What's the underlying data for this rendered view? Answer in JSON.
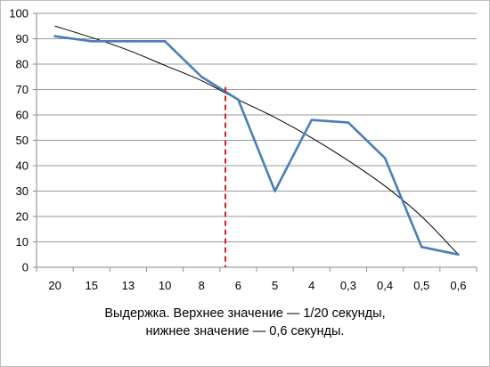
{
  "chart_data": {
    "type": "line",
    "categories": [
      "20",
      "15",
      "13",
      "10",
      "8",
      "6",
      "5",
      "4",
      "0,3",
      "0,4",
      "0,5",
      "0,6"
    ],
    "series": [
      {
        "values": [
          91,
          89,
          89,
          89,
          75,
          66,
          30,
          58,
          57,
          43,
          8,
          5
        ],
        "color": "#4a7ebb"
      }
    ],
    "trend": {
      "values": [
        95,
        90.5,
        85.5,
        79.5,
        73.5,
        66,
        59,
        51,
        42,
        32,
        20,
        5
      ],
      "color": "#000000"
    },
    "marker": {
      "x_between": [
        "8",
        "6"
      ],
      "position": 0.65,
      "color": "#d42020",
      "y_top": 71
    },
    "ylim": [
      0,
      100
    ],
    "yticks": [
      0,
      10,
      20,
      30,
      40,
      50,
      60,
      70,
      80,
      90,
      100
    ],
    "grid": "horizontal",
    "legend": "none",
    "xlabel": [
      "Выдержка. Верхнее значение — 1/20 секунды,",
      "нижнее значение — 0,6 секунды."
    ],
    "ylabel": "",
    "title": ""
  }
}
